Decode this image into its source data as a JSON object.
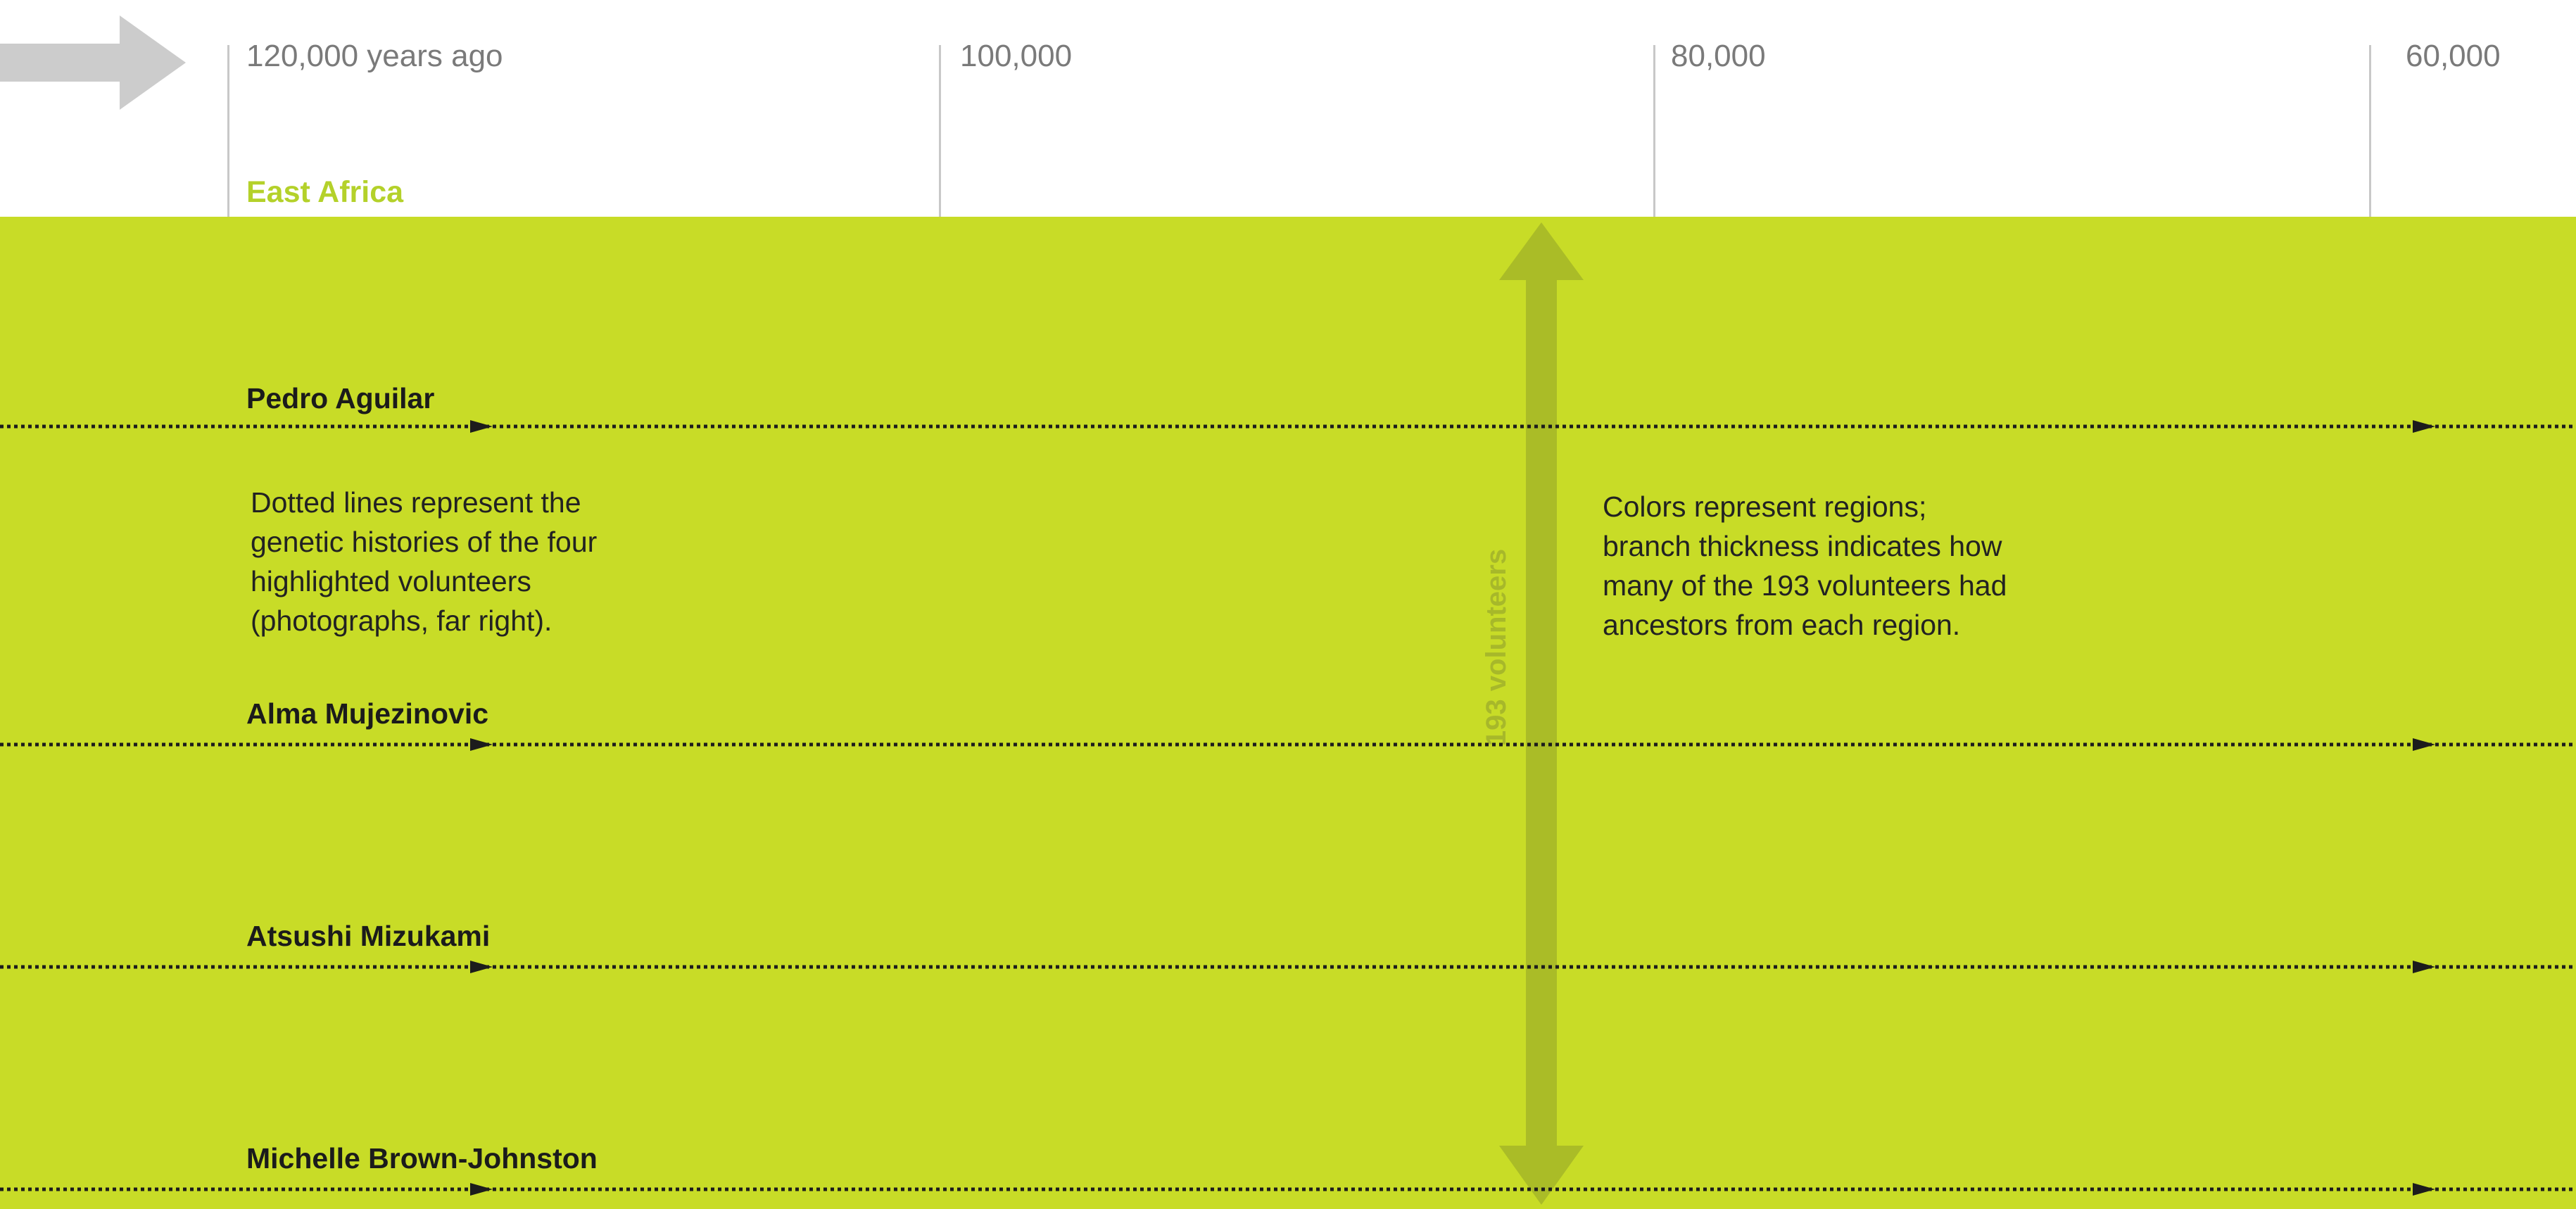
{
  "timeline": {
    "ticks": [
      {
        "label": "120,000 years ago"
      },
      {
        "label": "100,000"
      },
      {
        "label": "80,000"
      },
      {
        "label": "60,000"
      }
    ]
  },
  "region": {
    "name": "East Africa",
    "color": "#c8dc27",
    "label_color": "#b4d12a"
  },
  "lineages": [
    {
      "name": "Pedro Aguilar"
    },
    {
      "name": "Alma Mujezinovic"
    },
    {
      "name": "Atsushi Mizukami"
    },
    {
      "name": "Michelle Brown-Johnston"
    }
  ],
  "notes": {
    "dotted_lines": "Dotted lines represent the\ngenetic histories of the four\nhighlighted volunteers\n(photographs, far right).",
    "colors": "Colors represent regions;\nbranch thickness indicates how\nmany of the 193 volunteers had\nancestors from each region."
  },
  "volunteer_count": {
    "label": "193 volunteers"
  },
  "icons": {
    "nav": "arrow-right-icon",
    "count": "double-arrow-vertical-icon"
  }
}
